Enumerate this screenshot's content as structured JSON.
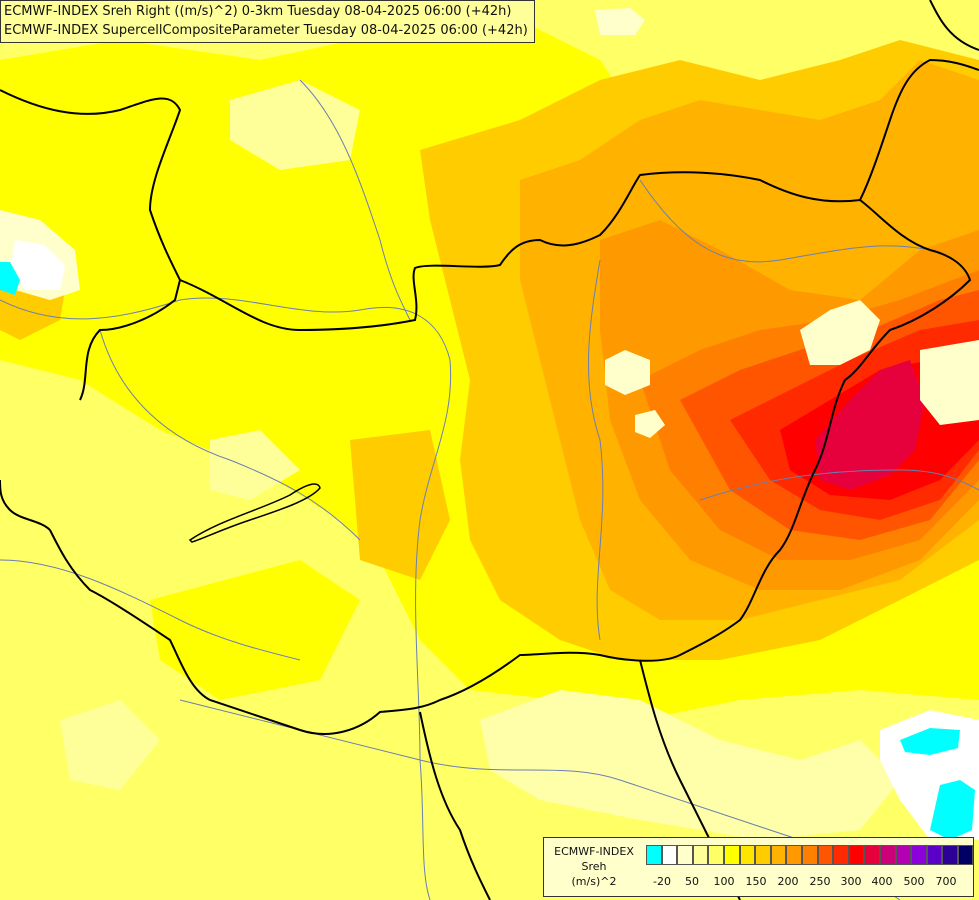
{
  "titles": {
    "line1": "ECMWF-INDEX Sreh Right ((m/s)^2) 0-3km Tuesday 08-04-2025 06:00 (+42h)",
    "line2": "ECMWF-INDEX SupercellCompositeParameter Tuesday 08-04-2025 06:00 (+42h)"
  },
  "legend": {
    "source": "ECMWF-INDEX",
    "variable": "Sreh",
    "unit": "(m/s)^2",
    "colors": [
      "#00ffff",
      "#ffffff",
      "#ffffcc",
      "#ffff99",
      "#ffff66",
      "#ffff00",
      "#ffe600",
      "#ffcc00",
      "#ffb300",
      "#ff9900",
      "#ff7f00",
      "#ff5500",
      "#ff2a00",
      "#ff0000",
      "#e6003c",
      "#cc0078",
      "#b400b4",
      "#8c00dc",
      "#5a00c8",
      "#2d0096",
      "#000064"
    ],
    "ticks": [
      "-20",
      "50",
      "100",
      "150",
      "200",
      "250",
      "300",
      "400",
      "500",
      "700"
    ]
  }
}
